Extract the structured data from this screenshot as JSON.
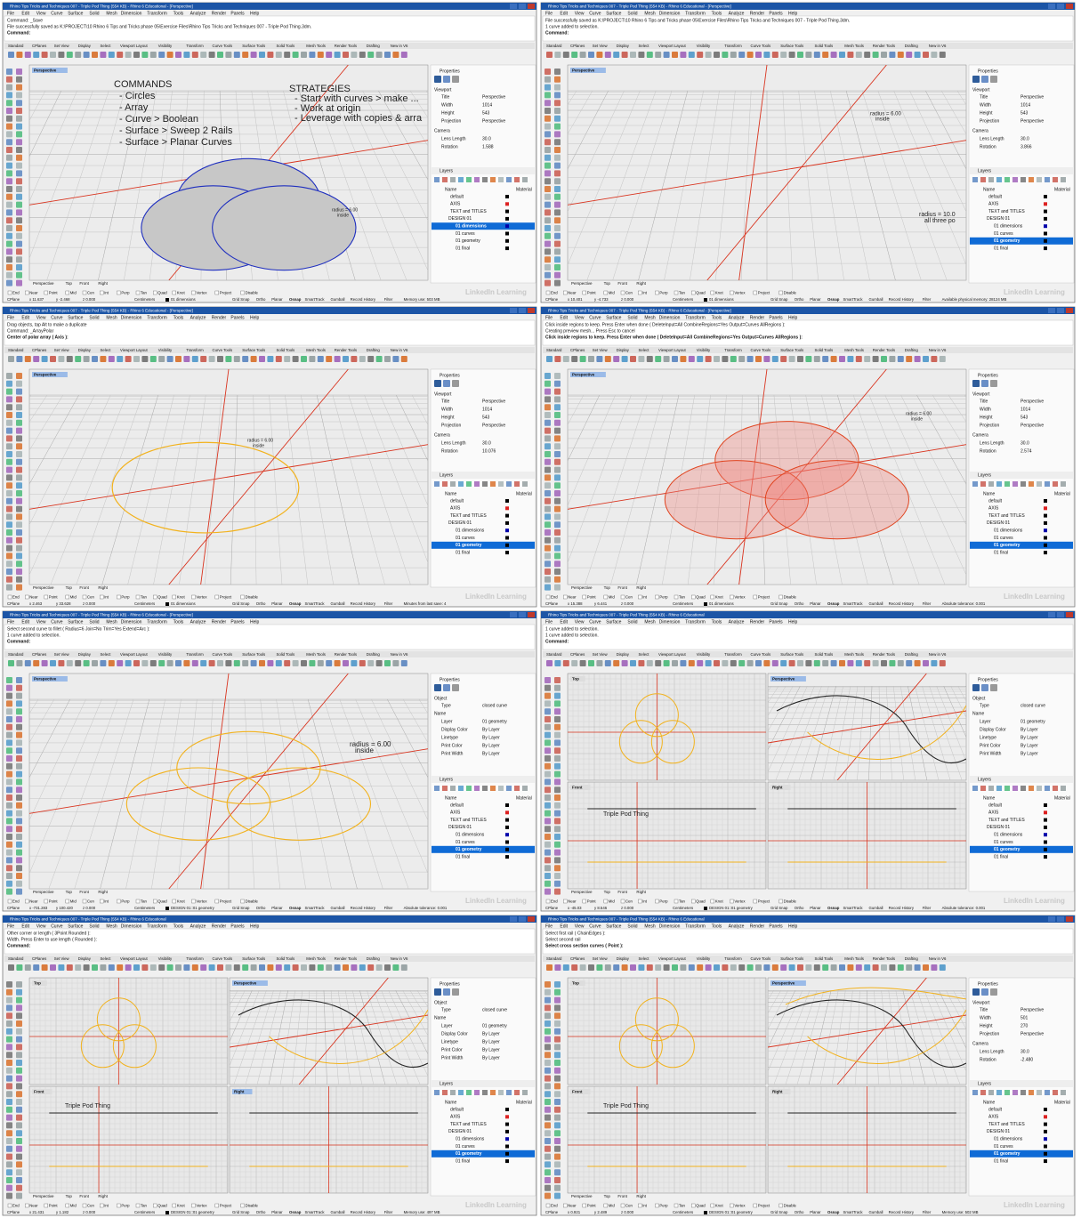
{
  "menu": [
    "File",
    "Edit",
    "View",
    "Curve",
    "Surface",
    "Solid",
    "Mesh",
    "Dimension",
    "Transform",
    "Tools",
    "Analyze",
    "Render",
    "Panels",
    "Help"
  ],
  "toolbar_tabs": [
    "Standard",
    "CPlanes",
    "Set View",
    "Display",
    "Select",
    "Viewport Layout",
    "Visibility",
    "Transform",
    "Curve Tools",
    "Surface Tools",
    "Solid Tools",
    "Mesh Tools",
    "Render Tools",
    "Drafting",
    "New in V6"
  ],
  "viewport_tabs": [
    "Perspective",
    "Top",
    "Front",
    "Right"
  ],
  "osnaps": [
    "End",
    "Near",
    "Point",
    "Mid",
    "Cen",
    "Int",
    "Perp",
    "Tan",
    "Quad",
    "Knot",
    "Vertex",
    "Project",
    "Disable"
  ],
  "status_items": [
    "CPlane",
    "Centimeters",
    "Grid Snap",
    "Ortho",
    "Planar",
    "Osnap",
    "SmartTrack",
    "Gumball",
    "Record History",
    "Filter"
  ],
  "properties_title": "Properties",
  "layers_title": "Layers",
  "layer_header": [
    "Name",
    "Material"
  ],
  "layers": [
    "default",
    "AXIS",
    "TEXT and TITLES",
    "DESIGN 01",
    "01 dimensions",
    "01 curves",
    "01 geometry",
    "01 final"
  ],
  "watermark": "LinkedIn Learning",
  "panels": [
    {
      "title": "Rhino Tips Tricks and Techniques 007 - Triple Pod Thing (554 KB) - Rhino 6 Educational - [Perspective]",
      "command_lines": [
        "Command: _Save",
        "File successfully saved as K:\\PROJECT\\10 Rhino 6 Tips and Tricks phase 05\\Exercise Files\\Rhino Tips Tricks and Techniques 007 - Triple Pod Thing.3dm.",
        "Command:"
      ],
      "viewports": [
        "Perspective"
      ],
      "section": "Viewport",
      "properties": [
        [
          "Title",
          "Perspective"
        ],
        [
          "Width",
          "1014"
        ],
        [
          "Height",
          "543"
        ],
        [
          "Projection",
          "Perspective"
        ],
        [
          "Camera",
          ""
        ],
        [
          "Lens Length",
          "30.0"
        ],
        [
          "Rotation",
          "1.588"
        ]
      ],
      "selected_layer": "01 dimensions",
      "coords": [
        "x 11.637",
        "y -2.468",
        "z 0.000"
      ],
      "current_layer": "01 dimensions",
      "status_note": "Memory use: 503 MB",
      "annotations": [
        [
          "COMMANDS",
          "- Circles",
          "- Array",
          "- Curve > Boolean",
          "- Surface > Sweep 2 Rails",
          "- Surface > Planar Curves"
        ],
        [
          "STRATEGIES",
          "- Start with curves > make ...",
          "- Work at origin",
          "- Leverage with copies & arra"
        ],
        [
          "radius = 6.00",
          "inside"
        ]
      ]
    },
    {
      "title": "Rhino Tips Tricks and Techniques 007 - Triple Pod Thing (554 KB) - Rhino 6 Educational - [Perspective]",
      "command_lines": [
        "File successfully saved as K:\\PROJECT\\10 Rhino 6 Tips and Tricks phase 05\\Exercise Files\\Rhino Tips Tricks and Techniques 007 - Triple Pod Thing.3dm.",
        "1 curve added to selection.",
        "Command:"
      ],
      "viewports": [
        "Perspective"
      ],
      "section": "Viewport",
      "properties": [
        [
          "Title",
          "Perspective"
        ],
        [
          "Width",
          "1014"
        ],
        [
          "Height",
          "543"
        ],
        [
          "Projection",
          "Perspective"
        ],
        [
          "Camera",
          ""
        ],
        [
          "Lens Length",
          "30.0"
        ],
        [
          "Rotation",
          "3.866"
        ]
      ],
      "selected_layer": "01 geometry",
      "coords": [
        "x 10.401",
        "y -4.733",
        "z 0.000"
      ],
      "current_layer": "01 dimensions",
      "status_note": "Available physical memory: 28124 MB",
      "annotations": [
        [
          "radius = 6.00",
          "inside"
        ],
        [
          "radius = 10.0",
          "all three po"
        ]
      ]
    },
    {
      "title": "Rhino Tips Tricks and Techniques 007 - Triple Pod Thing (554 KB) - Rhino 6 Educational - [Perspective]",
      "command_lines": [
        "Drag objects, tap Alt to make a duplicate",
        "Command: _ArrayPolar",
        "Center of polar array ( Axis ):"
      ],
      "viewports": [
        "Perspective"
      ],
      "section": "Viewport",
      "properties": [
        [
          "Title",
          "Perspective"
        ],
        [
          "Width",
          "1014"
        ],
        [
          "Height",
          "543"
        ],
        [
          "Projection",
          "Perspective"
        ],
        [
          "Camera",
          ""
        ],
        [
          "Lens Length",
          "30.0"
        ],
        [
          "Rotation",
          "10.076"
        ]
      ],
      "selected_layer": "01 geometry",
      "coords": [
        "x 2.463",
        "y 33.628",
        "z 0.000"
      ],
      "current_layer": "01 dimensions",
      "status_note": "Minutes from last save: 4",
      "annotations": [
        [
          "radius = 6.00",
          "inside"
        ]
      ]
    },
    {
      "title": "Rhino Tips Tricks and Techniques 007 - Triple Pod Thing (554 KB) - Rhino 6 Educational - [Perspective]",
      "command_lines": [
        "Click inside regions to keep. Press Enter when done ( DeleteInput=All CombineRegions=Yes Output=Curves AllRegions ):",
        "Creating preview mesh... Press Esc to cancel",
        "Click inside regions to keep. Press Enter when done ( DeleteInput=All CombineRegions=Yes Output=Curves AllRegions ):"
      ],
      "viewports": [
        "Perspective"
      ],
      "section": "Viewport",
      "properties": [
        [
          "Title",
          "Perspective"
        ],
        [
          "Width",
          "1014"
        ],
        [
          "Height",
          "543"
        ],
        [
          "Projection",
          "Perspective"
        ],
        [
          "Camera",
          ""
        ],
        [
          "Lens Length",
          "30.0"
        ],
        [
          "Rotation",
          "2.574"
        ]
      ],
      "selected_layer": "01 geometry",
      "coords": [
        "x 15.388",
        "y 6.441",
        "z 0.000"
      ],
      "current_layer": "01 dimensions",
      "status_note": "Absolute tolerance: 0.001",
      "annotations": [
        [
          "radius = 6.00",
          "inside"
        ]
      ]
    },
    {
      "title": "Rhino Tips Tricks and Techniques 007 - Triple Pod Thing (554 KB) - Rhino 6 Educational - [Perspective]",
      "command_lines": [
        "Select second curve to fillet ( Radius=6 Join=No Trim=Yes Extend=Arc ):",
        "1 curve added to selection.",
        "Command:"
      ],
      "viewports": [
        "Perspective"
      ],
      "section": "Object",
      "properties": [
        [
          "Type",
          "closed curve"
        ],
        [
          "Name",
          ""
        ],
        [
          "Layer",
          "01 geometry"
        ],
        [
          "Display Color",
          "By Layer"
        ],
        [
          "Linetype",
          "By Layer"
        ],
        [
          "Print Color",
          "By Layer"
        ],
        [
          "Print Width",
          "By Layer"
        ]
      ],
      "selected_layer": "01 geometry",
      "coords": [
        "x -731.283",
        "y 100.420",
        "z 0.000"
      ],
      "current_layer": "DESIGN 01::01 geometry",
      "status_note": "Absolute tolerance: 0.001",
      "annotations": [
        [
          "radius = 6.00",
          "inside"
        ]
      ]
    },
    {
      "title": "Rhino Tips Tricks and Techniques 007 - Triple Pod Thing (554 KB) - Rhino 6 Educational",
      "command_lines": [
        "1 curve added to selection.",
        "1 curve added to selection.",
        "Command:"
      ],
      "viewports": [
        "Top",
        "Perspective",
        "Front",
        "Right"
      ],
      "section": "Object",
      "properties": [
        [
          "Type",
          "closed curve"
        ],
        [
          "Name",
          ""
        ],
        [
          "Layer",
          "01 geometry"
        ],
        [
          "Display Color",
          "By Layer"
        ],
        [
          "Linetype",
          "By Layer"
        ],
        [
          "Print Color",
          "By Layer"
        ],
        [
          "Print Width",
          "By Layer"
        ]
      ],
      "selected_layer": "01 geometry",
      "coords": [
        "x -45.03",
        "y 8.546",
        "z 0.000"
      ],
      "current_layer": "DESIGN 01::01 geometry",
      "status_note": "Absolute tolerance: 0.001",
      "annotations": [
        [
          "Triple Pod Thing"
        ]
      ]
    },
    {
      "title": "Rhino Tips Tricks and Techniques 007 - Triple Pod Thing (554 KB) - Rhino 6 Educational",
      "command_lines": [
        "Other corner or length ( 3Point Rounded ):",
        "Width. Press Enter to use length ( Rounded ):",
        "Command:"
      ],
      "viewports": [
        "Top",
        "Perspective",
        "Front",
        "Right"
      ],
      "section": "Object",
      "properties": [
        [
          "Type",
          "closed curve"
        ],
        [
          "Name",
          ""
        ],
        [
          "Layer",
          "01 geometry"
        ],
        [
          "Display Color",
          "By Layer"
        ],
        [
          "Linetype",
          "By Layer"
        ],
        [
          "Print Color",
          "By Layer"
        ],
        [
          "Print Width",
          "By Layer"
        ]
      ],
      "selected_layer": "01 geometry",
      "coords": [
        "x 21.431",
        "y 1.182",
        "z 0.000"
      ],
      "current_layer": "DESIGN 01::01 geometry",
      "status_note": "Memory use: 497 MB",
      "annotations": [
        [
          "Triple Pod Thing"
        ]
      ]
    },
    {
      "title": "Rhino Tips Tricks and Techniques 007 - Triple Pod Thing (554 KB) - Rhino 6 Educational",
      "command_lines": [
        "Select first rail ( ChainEdges ):",
        "Select second rail",
        "Select cross section curves ( Point ):"
      ],
      "viewports": [
        "Top",
        "Perspective",
        "Front",
        "Right"
      ],
      "section": "Viewport",
      "properties": [
        [
          "Title",
          "Perspective"
        ],
        [
          "Width",
          "501"
        ],
        [
          "Height",
          "270"
        ],
        [
          "Projection",
          "Perspective"
        ],
        [
          "Camera",
          ""
        ],
        [
          "Lens Length",
          "30.0"
        ],
        [
          "Rotation",
          "-2.480"
        ]
      ],
      "selected_layer": "01 geometry",
      "coords": [
        "x 0.921",
        "y 2.489",
        "z 0.000"
      ],
      "current_layer": "DESIGN 01::01 geometry",
      "status_note": "Memory use: 502 MB",
      "annotations": [
        [
          "Triple Pod Thing"
        ]
      ]
    }
  ]
}
